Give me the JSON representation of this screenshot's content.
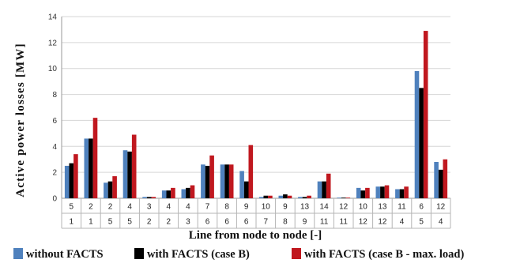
{
  "chart_data": {
    "type": "bar",
    "title": "",
    "ylabel": "Active power losses [MW]",
    "xlabel": "Line from node to node [-]",
    "ylim": [
      0,
      14
    ],
    "yticks": [
      "0",
      "2",
      "4",
      "6",
      "8",
      "10",
      "12",
      "14"
    ],
    "grid": "horizontal",
    "legend_position": "bottom",
    "categories": [
      {
        "from": "5",
        "to": "1"
      },
      {
        "from": "2",
        "to": "1"
      },
      {
        "from": "2",
        "to": "5"
      },
      {
        "from": "4",
        "to": "5"
      },
      {
        "from": "3",
        "to": "2"
      },
      {
        "from": "4",
        "to": "2"
      },
      {
        "from": "4",
        "to": "3"
      },
      {
        "from": "7",
        "to": "6"
      },
      {
        "from": "8",
        "to": "6"
      },
      {
        "from": "9",
        "to": "6"
      },
      {
        "from": "10",
        "to": "7"
      },
      {
        "from": "9",
        "to": "8"
      },
      {
        "from": "13",
        "to": "9"
      },
      {
        "from": "14",
        "to": "11"
      },
      {
        "from": "12",
        "to": "11"
      },
      {
        "from": "10",
        "to": "12"
      },
      {
        "from": "13",
        "to": "12"
      },
      {
        "from": "11",
        "to": "4"
      },
      {
        "from": "6",
        "to": "5"
      },
      {
        "from": "12",
        "to": "4"
      }
    ],
    "series": [
      {
        "name": "without FACTS",
        "color": "#4f81bd",
        "values": [
          2.5,
          4.6,
          1.2,
          3.7,
          0.1,
          0.6,
          0.7,
          2.6,
          2.6,
          2.1,
          0.1,
          0.2,
          0.1,
          1.3,
          0.05,
          0.8,
          0.9,
          0.7,
          9.8,
          2.8
        ]
      },
      {
        "name": "with FACTS (case B)",
        "color": "#000000",
        "values": [
          2.7,
          4.6,
          1.3,
          3.6,
          0.1,
          0.6,
          0.8,
          2.5,
          2.6,
          1.3,
          0.2,
          0.3,
          0.1,
          1.3,
          0.05,
          0.6,
          0.9,
          0.7,
          8.5,
          2.2
        ]
      },
      {
        "name": "with FACTS (case B - max. load)",
        "color": "#c0181f",
        "values": [
          3.4,
          6.2,
          1.7,
          4.9,
          0.1,
          0.8,
          1.0,
          3.3,
          2.6,
          4.1,
          0.2,
          0.2,
          0.2,
          1.9,
          0.05,
          0.8,
          1.0,
          0.9,
          12.9,
          3.0
        ]
      }
    ]
  }
}
